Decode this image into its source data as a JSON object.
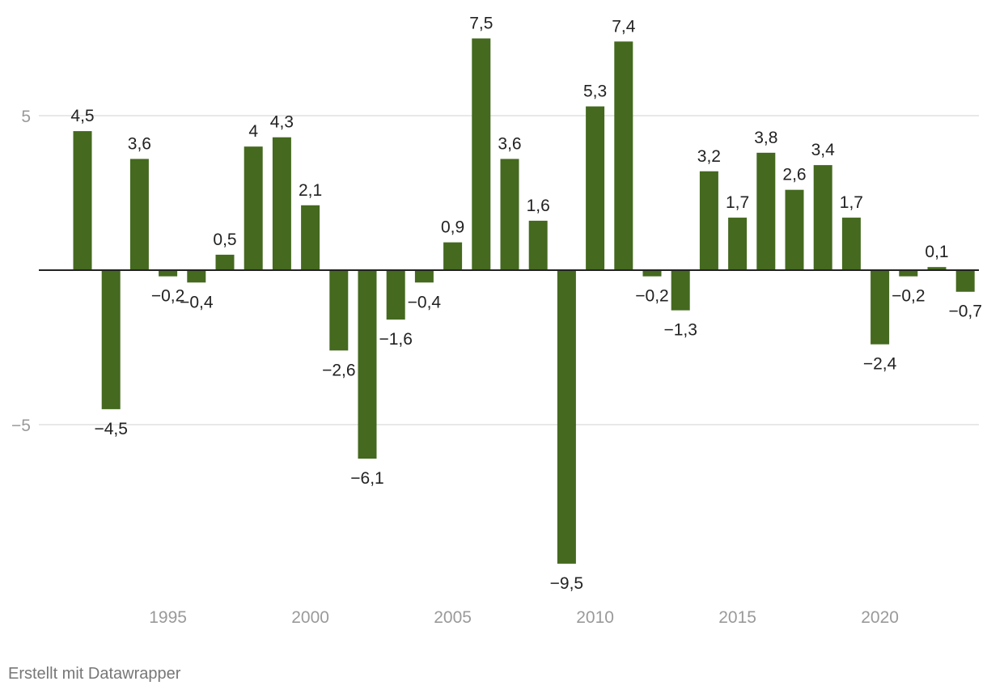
{
  "chart_data": {
    "type": "bar",
    "title": "",
    "xlabel": "",
    "ylabel": "",
    "ylim": [
      -10,
      8
    ],
    "y_gridlines": [
      5,
      -5
    ],
    "y_tick_labels": [
      "5",
      "−5"
    ],
    "x_tick_years": [
      1995,
      2000,
      2005,
      2010,
      2015,
      2020
    ],
    "x_tick_labels": [
      "1995",
      "2000",
      "2005",
      "2010",
      "2015",
      "2020"
    ],
    "categories": [
      1992,
      1993,
      1994,
      1995,
      1996,
      1997,
      1998,
      1999,
      2000,
      2001,
      2002,
      2003,
      2004,
      2005,
      2006,
      2007,
      2008,
      2009,
      2010,
      2011,
      2012,
      2013,
      2014,
      2015,
      2016,
      2017,
      2018,
      2019,
      2020,
      2021,
      2022,
      2023
    ],
    "values": [
      4.5,
      -4.5,
      3.6,
      -0.2,
      -0.4,
      0.5,
      4,
      4.3,
      2.1,
      -2.6,
      -6.1,
      -1.6,
      -0.4,
      0.9,
      7.5,
      3.6,
      1.6,
      -9.5,
      5.3,
      7.4,
      -0.2,
      -1.3,
      3.2,
      1.7,
      3.8,
      2.6,
      3.4,
      1.7,
      -2.4,
      -0.2,
      0.1,
      -0.7
    ],
    "labels": [
      "4,5",
      "−4,5",
      "3,6",
      "−0,2",
      "−0,4",
      "0,5",
      "4",
      "4,3",
      "2,1",
      "−2,6",
      "−6,1",
      "−1,6",
      "−0,4",
      "0,9",
      "7,5",
      "3,6",
      "1,6",
      "−9,5",
      "5,3",
      "7,4",
      "−0,2",
      "−1,3",
      "3,2",
      "1,7",
      "3,8",
      "2,6",
      "3,4",
      "1,7",
      "−2,4",
      "−0,2",
      "0,1",
      "−0,7"
    ],
    "bar_color": "#44691f",
    "grid_color": "#e0e0e0",
    "zero_line_color": "#222222"
  },
  "footer": {
    "credit": "Erstellt mit Datawrapper"
  }
}
